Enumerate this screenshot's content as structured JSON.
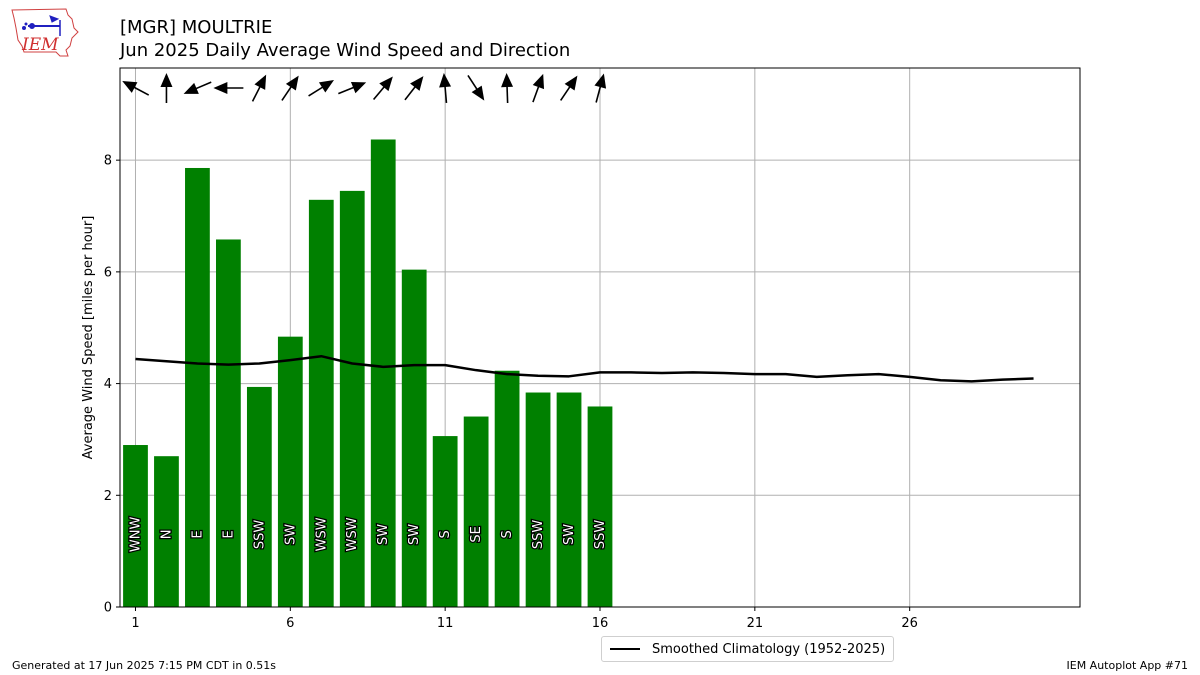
{
  "header": {
    "title_line1": "[MGR] MOULTRIE",
    "title_line2": "Jun 2025 Daily Average Wind Speed and Direction"
  },
  "logo": {
    "text": "IEM",
    "icon": "iem-iowa-state-logo"
  },
  "footer": {
    "generated": "Generated at 17 Jun 2025 7:15 PM CDT in 0.51s",
    "app": "IEM Autoplot App #71"
  },
  "colors": {
    "bars": "#008000",
    "climo_line": "#000000",
    "grid": "#b0b0b0"
  },
  "chart_data": {
    "type": "bar",
    "ylabel": "Average Wind Speed [miles per hour]",
    "xlabel": "",
    "xlim": [
      0.5,
      31.5
    ],
    "ylim": [
      0,
      9.65
    ],
    "xticks": [
      1,
      6,
      11,
      16,
      21,
      26
    ],
    "yticks": [
      0,
      2,
      4,
      6,
      8
    ],
    "grid": true,
    "legend_position": "bottom-center",
    "days": [
      1,
      2,
      3,
      4,
      5,
      6,
      7,
      8,
      9,
      10,
      11,
      12,
      13,
      14,
      15,
      16
    ],
    "values": [
      2.9,
      2.7,
      7.86,
      6.58,
      3.94,
      4.84,
      7.29,
      7.45,
      8.37,
      6.04,
      3.06,
      3.41,
      4.23,
      3.84,
      3.84,
      3.59
    ],
    "direction_labels": [
      "WNW",
      "N",
      "E",
      "E",
      "SSW",
      "SW",
      "WSW",
      "WSW",
      "SW",
      "SW",
      "S",
      "SE",
      "S",
      "SSW",
      "SW",
      "SSW"
    ],
    "arrow_directions_deg": [
      -62,
      0,
      -113,
      -90,
      27,
      34,
      58,
      68,
      40,
      38,
      -5,
      147,
      -2,
      20,
      34,
      15
    ],
    "climatology": {
      "name": "Smoothed Climatology (1952-2025)",
      "x": [
        1,
        2,
        3,
        4,
        5,
        6,
        7,
        8,
        9,
        10,
        11,
        12,
        13,
        14,
        15,
        16,
        17,
        18,
        19,
        20,
        21,
        22,
        23,
        24,
        25,
        26,
        27,
        28,
        29,
        30
      ],
      "values": [
        4.44,
        4.4,
        4.36,
        4.34,
        4.36,
        4.42,
        4.49,
        4.36,
        4.3,
        4.33,
        4.33,
        4.24,
        4.17,
        4.14,
        4.13,
        4.2,
        4.2,
        4.19,
        4.2,
        4.19,
        4.17,
        4.17,
        4.12,
        4.15,
        4.17,
        4.12,
        4.06,
        4.04,
        4.07,
        4.09
      ]
    }
  }
}
